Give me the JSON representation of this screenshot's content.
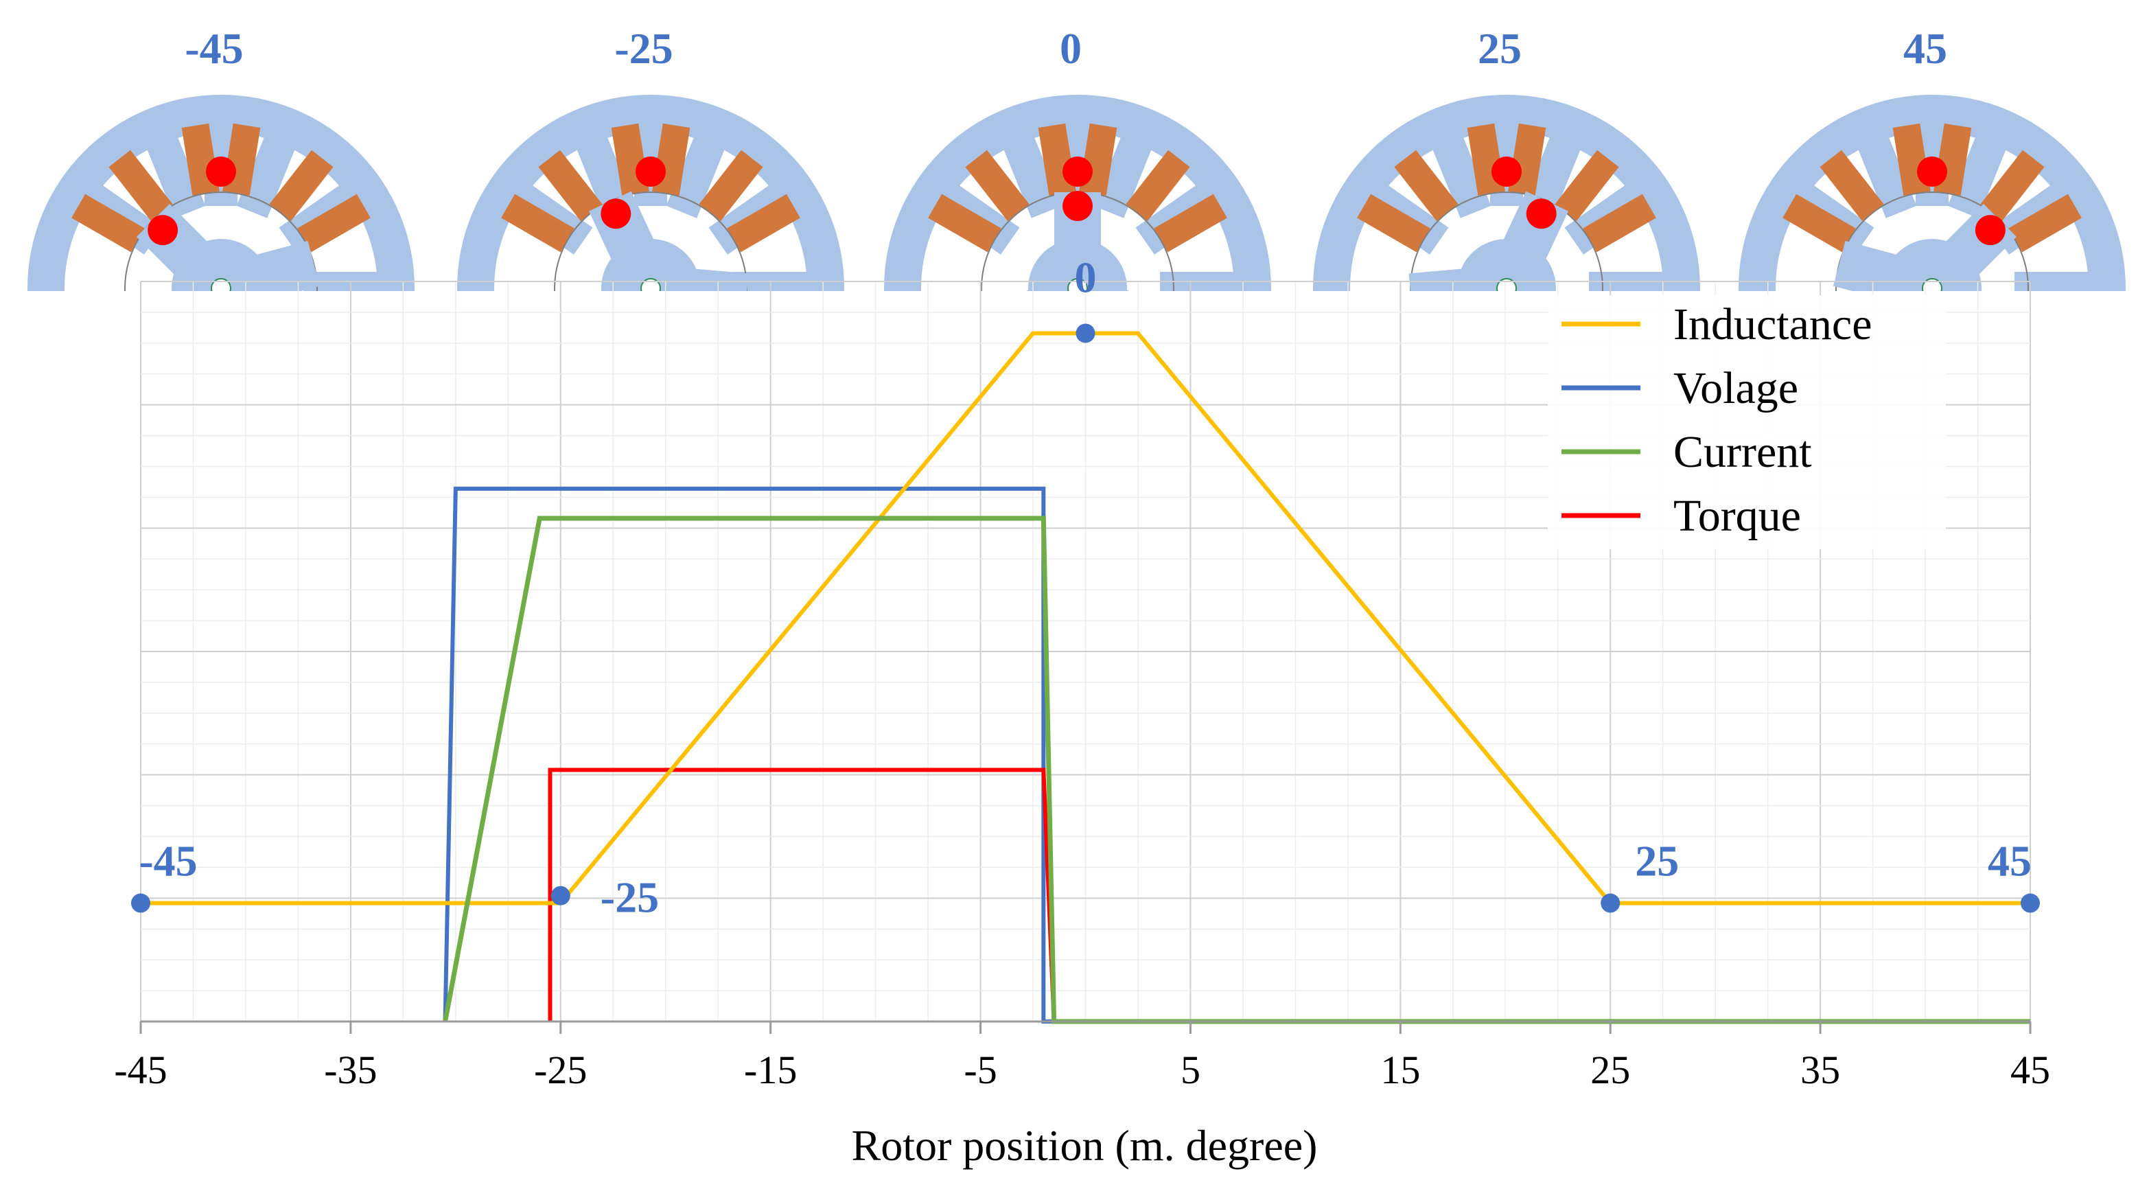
{
  "chart_data": {
    "type": "line",
    "xlabel": "Rotor position (m. degree)",
    "xlim": [
      -45,
      45
    ],
    "xticks": [
      "-45",
      "-35",
      "-25",
      "-15",
      "-5",
      "5",
      "15",
      "25",
      "35",
      "45"
    ],
    "ylim": [
      0,
      1
    ],
    "grid": true,
    "legend_position": "top-right",
    "series": [
      {
        "name": "Inductance",
        "color": "#FFC000",
        "x": [
          -45,
          -25,
          -2.5,
          2.5,
          25,
          45
        ],
        "y": [
          0.16,
          0.16,
          0.93,
          0.93,
          0.16,
          0.16
        ]
      },
      {
        "name": "Volage",
        "color": "#4472C4",
        "x": [
          -30.5,
          -30,
          -2,
          -2,
          -1.5,
          45
        ],
        "y": [
          0,
          0.72,
          0.72,
          0.0,
          0,
          0
        ]
      },
      {
        "name": "Current",
        "color": "#70AD47",
        "x": [
          -30.5,
          -26,
          -2,
          -1.5,
          45
        ],
        "y": [
          0,
          0.68,
          0.68,
          0,
          0
        ]
      },
      {
        "name": "Torque",
        "color": "#FF0000",
        "x": [
          -25.5,
          -25.5,
          -2,
          -1.5,
          45
        ],
        "y": [
          0,
          0.34,
          0.34,
          0,
          0
        ]
      }
    ],
    "markers": [
      {
        "label": "-45",
        "x": -45,
        "y": 0.16
      },
      {
        "label": "-25",
        "x": -25,
        "y": 0.17
      },
      {
        "label": "0",
        "x": 0,
        "y": 0.93
      },
      {
        "label": "25",
        "x": 25,
        "y": 0.16
      },
      {
        "label": "45",
        "x": 45,
        "y": 0.16
      }
    ]
  },
  "rotor_diagrams": {
    "labels": [
      "-45",
      "-25",
      "0",
      "25",
      "45"
    ],
    "angles_deg": [
      -45,
      -25,
      0,
      25,
      45
    ]
  },
  "colors": {
    "stator": "#A9C4E6",
    "coil": "#D2783C",
    "conductor": "#FF0000",
    "grid": "#D9D9D9",
    "label": "#4472C4"
  }
}
